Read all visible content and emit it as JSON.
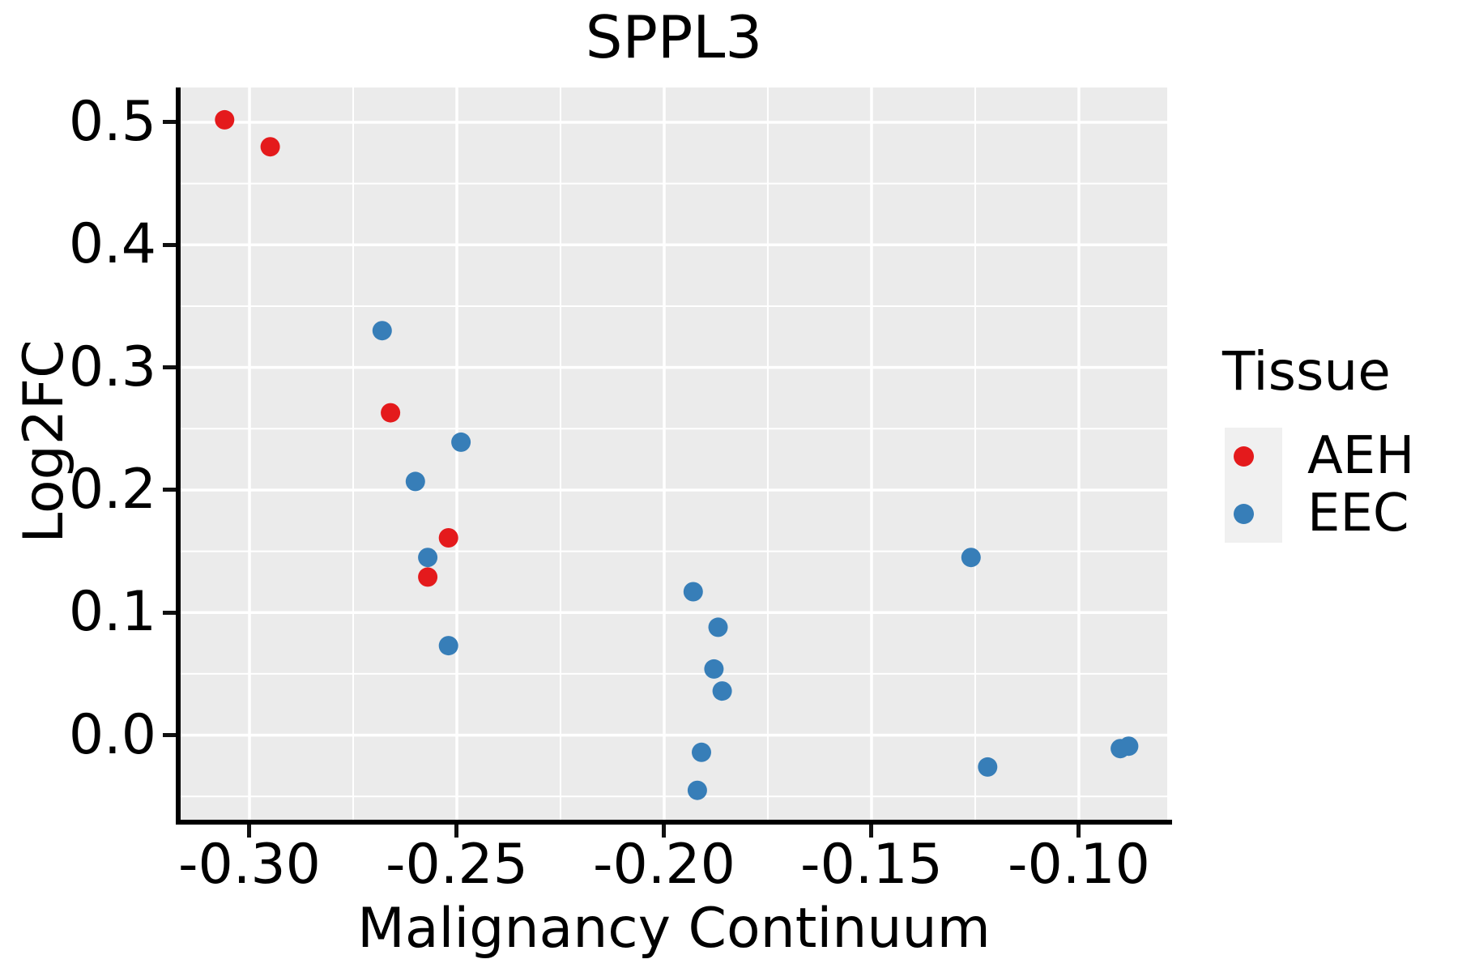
{
  "title": "SPPL3",
  "axes": {
    "x": {
      "label": "Malignancy Continuum",
      "ticks": [
        -0.3,
        -0.25,
        -0.2,
        -0.15,
        -0.1
      ],
      "tick_labels": [
        "-0.30",
        "-0.25",
        "-0.20",
        "-0.15",
        "-0.10"
      ],
      "minor_ticks": [
        -0.275,
        -0.225,
        -0.175,
        -0.125
      ]
    },
    "y": {
      "label": "Log2FC",
      "ticks": [
        0.0,
        0.1,
        0.2,
        0.3,
        0.4,
        0.5
      ],
      "tick_labels": [
        "0.0",
        "0.1",
        "0.2",
        "0.3",
        "0.4",
        "0.5"
      ],
      "minor_ticks": [
        -0.05,
        0.05,
        0.15,
        0.25,
        0.35,
        0.45
      ]
    }
  },
  "legend": {
    "title": "Tissue"
  },
  "colors": {
    "panel_bg": "#EBEBEB",
    "grid": "#FFFFFF",
    "spine": "#000000",
    "legend_key_bg": "#F0F0F0",
    "aeh": "#E41A1C",
    "eec": "#377EB8"
  },
  "chart_data": {
    "type": "scatter",
    "title": "SPPL3",
    "xlabel": "Malignancy Continuum",
    "ylabel": "Log2FC",
    "xlim": [
      -0.3166,
      -0.0787
    ],
    "ylim": [
      -0.069,
      0.5284
    ],
    "grid": "on",
    "legend_position": "right",
    "series": [
      {
        "name": "AEH",
        "color": "#E41A1C",
        "points": [
          [
            -0.306,
            0.502
          ],
          [
            -0.295,
            0.48
          ],
          [
            -0.266,
            0.263
          ],
          [
            -0.252,
            0.161
          ],
          [
            -0.257,
            0.129
          ]
        ]
      },
      {
        "name": "EEC",
        "color": "#377EB8",
        "points": [
          [
            -0.268,
            0.33
          ],
          [
            -0.26,
            0.207
          ],
          [
            -0.249,
            0.239
          ],
          [
            -0.257,
            0.145
          ],
          [
            -0.252,
            0.073
          ],
          [
            -0.193,
            0.117
          ],
          [
            -0.187,
            0.088
          ],
          [
            -0.188,
            0.054
          ],
          [
            -0.186,
            0.036
          ],
          [
            -0.191,
            -0.014
          ],
          [
            -0.192,
            -0.045
          ],
          [
            -0.126,
            0.145
          ],
          [
            -0.122,
            -0.026
          ],
          [
            -0.09,
            -0.011
          ],
          [
            -0.088,
            -0.009
          ]
        ]
      }
    ]
  }
}
